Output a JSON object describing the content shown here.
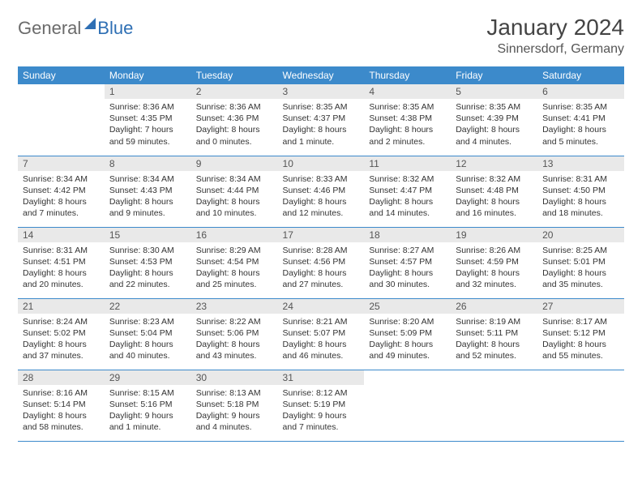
{
  "logo": {
    "part1": "General",
    "part2": "Blue"
  },
  "title": "January 2024",
  "location": "Sinnersdorf, Germany",
  "colors": {
    "header_bg": "#3c8acb",
    "header_text": "#ffffff",
    "daynum_bg": "#e9e9e9",
    "border": "#3c8acb",
    "logo_gray": "#6b6b6b",
    "logo_blue": "#2e6fb4"
  },
  "day_labels": [
    "Sunday",
    "Monday",
    "Tuesday",
    "Wednesday",
    "Thursday",
    "Friday",
    "Saturday"
  ],
  "weeks": [
    [
      {
        "n": "",
        "sr": "",
        "ss": "",
        "dl": ""
      },
      {
        "n": "1",
        "sr": "Sunrise: 8:36 AM",
        "ss": "Sunset: 4:35 PM",
        "dl": "Daylight: 7 hours and 59 minutes."
      },
      {
        "n": "2",
        "sr": "Sunrise: 8:36 AM",
        "ss": "Sunset: 4:36 PM",
        "dl": "Daylight: 8 hours and 0 minutes."
      },
      {
        "n": "3",
        "sr": "Sunrise: 8:35 AM",
        "ss": "Sunset: 4:37 PM",
        "dl": "Daylight: 8 hours and 1 minute."
      },
      {
        "n": "4",
        "sr": "Sunrise: 8:35 AM",
        "ss": "Sunset: 4:38 PM",
        "dl": "Daylight: 8 hours and 2 minutes."
      },
      {
        "n": "5",
        "sr": "Sunrise: 8:35 AM",
        "ss": "Sunset: 4:39 PM",
        "dl": "Daylight: 8 hours and 4 minutes."
      },
      {
        "n": "6",
        "sr": "Sunrise: 8:35 AM",
        "ss": "Sunset: 4:41 PM",
        "dl": "Daylight: 8 hours and 5 minutes."
      }
    ],
    [
      {
        "n": "7",
        "sr": "Sunrise: 8:34 AM",
        "ss": "Sunset: 4:42 PM",
        "dl": "Daylight: 8 hours and 7 minutes."
      },
      {
        "n": "8",
        "sr": "Sunrise: 8:34 AM",
        "ss": "Sunset: 4:43 PM",
        "dl": "Daylight: 8 hours and 9 minutes."
      },
      {
        "n": "9",
        "sr": "Sunrise: 8:34 AM",
        "ss": "Sunset: 4:44 PM",
        "dl": "Daylight: 8 hours and 10 minutes."
      },
      {
        "n": "10",
        "sr": "Sunrise: 8:33 AM",
        "ss": "Sunset: 4:46 PM",
        "dl": "Daylight: 8 hours and 12 minutes."
      },
      {
        "n": "11",
        "sr": "Sunrise: 8:32 AM",
        "ss": "Sunset: 4:47 PM",
        "dl": "Daylight: 8 hours and 14 minutes."
      },
      {
        "n": "12",
        "sr": "Sunrise: 8:32 AM",
        "ss": "Sunset: 4:48 PM",
        "dl": "Daylight: 8 hours and 16 minutes."
      },
      {
        "n": "13",
        "sr": "Sunrise: 8:31 AM",
        "ss": "Sunset: 4:50 PM",
        "dl": "Daylight: 8 hours and 18 minutes."
      }
    ],
    [
      {
        "n": "14",
        "sr": "Sunrise: 8:31 AM",
        "ss": "Sunset: 4:51 PM",
        "dl": "Daylight: 8 hours and 20 minutes."
      },
      {
        "n": "15",
        "sr": "Sunrise: 8:30 AM",
        "ss": "Sunset: 4:53 PM",
        "dl": "Daylight: 8 hours and 22 minutes."
      },
      {
        "n": "16",
        "sr": "Sunrise: 8:29 AM",
        "ss": "Sunset: 4:54 PM",
        "dl": "Daylight: 8 hours and 25 minutes."
      },
      {
        "n": "17",
        "sr": "Sunrise: 8:28 AM",
        "ss": "Sunset: 4:56 PM",
        "dl": "Daylight: 8 hours and 27 minutes."
      },
      {
        "n": "18",
        "sr": "Sunrise: 8:27 AM",
        "ss": "Sunset: 4:57 PM",
        "dl": "Daylight: 8 hours and 30 minutes."
      },
      {
        "n": "19",
        "sr": "Sunrise: 8:26 AM",
        "ss": "Sunset: 4:59 PM",
        "dl": "Daylight: 8 hours and 32 minutes."
      },
      {
        "n": "20",
        "sr": "Sunrise: 8:25 AM",
        "ss": "Sunset: 5:01 PM",
        "dl": "Daylight: 8 hours and 35 minutes."
      }
    ],
    [
      {
        "n": "21",
        "sr": "Sunrise: 8:24 AM",
        "ss": "Sunset: 5:02 PM",
        "dl": "Daylight: 8 hours and 37 minutes."
      },
      {
        "n": "22",
        "sr": "Sunrise: 8:23 AM",
        "ss": "Sunset: 5:04 PM",
        "dl": "Daylight: 8 hours and 40 minutes."
      },
      {
        "n": "23",
        "sr": "Sunrise: 8:22 AM",
        "ss": "Sunset: 5:06 PM",
        "dl": "Daylight: 8 hours and 43 minutes."
      },
      {
        "n": "24",
        "sr": "Sunrise: 8:21 AM",
        "ss": "Sunset: 5:07 PM",
        "dl": "Daylight: 8 hours and 46 minutes."
      },
      {
        "n": "25",
        "sr": "Sunrise: 8:20 AM",
        "ss": "Sunset: 5:09 PM",
        "dl": "Daylight: 8 hours and 49 minutes."
      },
      {
        "n": "26",
        "sr": "Sunrise: 8:19 AM",
        "ss": "Sunset: 5:11 PM",
        "dl": "Daylight: 8 hours and 52 minutes."
      },
      {
        "n": "27",
        "sr": "Sunrise: 8:17 AM",
        "ss": "Sunset: 5:12 PM",
        "dl": "Daylight: 8 hours and 55 minutes."
      }
    ],
    [
      {
        "n": "28",
        "sr": "Sunrise: 8:16 AM",
        "ss": "Sunset: 5:14 PM",
        "dl": "Daylight: 8 hours and 58 minutes."
      },
      {
        "n": "29",
        "sr": "Sunrise: 8:15 AM",
        "ss": "Sunset: 5:16 PM",
        "dl": "Daylight: 9 hours and 1 minute."
      },
      {
        "n": "30",
        "sr": "Sunrise: 8:13 AM",
        "ss": "Sunset: 5:18 PM",
        "dl": "Daylight: 9 hours and 4 minutes."
      },
      {
        "n": "31",
        "sr": "Sunrise: 8:12 AM",
        "ss": "Sunset: 5:19 PM",
        "dl": "Daylight: 9 hours and 7 minutes."
      },
      {
        "n": "",
        "sr": "",
        "ss": "",
        "dl": ""
      },
      {
        "n": "",
        "sr": "",
        "ss": "",
        "dl": ""
      },
      {
        "n": "",
        "sr": "",
        "ss": "",
        "dl": ""
      }
    ]
  ]
}
